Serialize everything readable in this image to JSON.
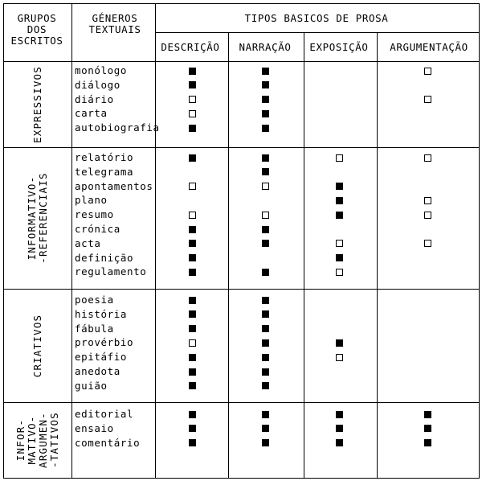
{
  "header": {
    "groups": "GRUPOS\nDOS\nESCRITOS",
    "genres": "GÉNEROS\nTEXTUAIS",
    "types_title": "TIPOS BASICOS DE PROSA",
    "columns": [
      "DESCRIÇÃO",
      "NARRAÇÃO",
      "EXPOSIÇÃO",
      "ARGUMENTAÇÃO"
    ]
  },
  "legend_marks": {
    "filled": "filled-square",
    "empty": "empty-square"
  },
  "groups": [
    {
      "name": "EXPRESSIVOS",
      "rows": [
        {
          "genre": "monólogo",
          "marks": [
            "f",
            "f",
            "",
            "e"
          ]
        },
        {
          "genre": "diálogo",
          "marks": [
            "f",
            "f",
            "",
            ""
          ]
        },
        {
          "genre": "diário",
          "marks": [
            "e",
            "f",
            "",
            "e"
          ]
        },
        {
          "genre": "carta",
          "marks": [
            "e",
            "f",
            "",
            ""
          ]
        },
        {
          "genre": "autobiografia",
          "marks": [
            "f",
            "f",
            "",
            ""
          ]
        }
      ]
    },
    {
      "name": "INFORMATIVO-\n-REFERENCIAIS",
      "rows": [
        {
          "genre": "relatório",
          "marks": [
            "f",
            "f",
            "e",
            "e"
          ]
        },
        {
          "genre": "telegrama",
          "marks": [
            "",
            "f",
            "",
            ""
          ]
        },
        {
          "genre": "apontamentos",
          "marks": [
            "e",
            "e",
            "f",
            ""
          ]
        },
        {
          "genre": "plano",
          "marks": [
            "",
            "",
            "f",
            "e"
          ]
        },
        {
          "genre": "resumo",
          "marks": [
            "e",
            "e",
            "f",
            "e"
          ]
        },
        {
          "genre": "crónica",
          "marks": [
            "f",
            "f",
            "",
            ""
          ]
        },
        {
          "genre": "acta",
          "marks": [
            "f",
            "f",
            "e",
            "e"
          ]
        },
        {
          "genre": "definição",
          "marks": [
            "f",
            "",
            "f",
            ""
          ]
        },
        {
          "genre": "regulamento",
          "marks": [
            "f",
            "f",
            "e",
            ""
          ]
        }
      ]
    },
    {
      "name": "CRIATIVOS",
      "rows": [
        {
          "genre": "poesia",
          "marks": [
            "f",
            "f",
            "",
            ""
          ]
        },
        {
          "genre": "história",
          "marks": [
            "f",
            "f",
            "",
            ""
          ]
        },
        {
          "genre": "fábula",
          "marks": [
            "f",
            "f",
            "",
            ""
          ]
        },
        {
          "genre": "provérbio",
          "marks": [
            "e",
            "f",
            "f",
            ""
          ]
        },
        {
          "genre": "epitáfio",
          "marks": [
            "f",
            "f",
            "e",
            ""
          ]
        },
        {
          "genre": "anedota",
          "marks": [
            "f",
            "f",
            "",
            ""
          ]
        },
        {
          "genre": "guião",
          "marks": [
            "f",
            "f",
            "",
            ""
          ]
        }
      ]
    },
    {
      "name": "INFOR-\nMATIVO-\nARGUMEN-\n-TATIVOS",
      "rows": [
        {
          "genre": "editorial",
          "marks": [
            "f",
            "f",
            "f",
            "f"
          ]
        },
        {
          "genre": "ensaio",
          "marks": [
            "f",
            "f",
            "f",
            "f"
          ]
        },
        {
          "genre": "comentário",
          "marks": [
            "f",
            "f",
            "f",
            "f"
          ]
        }
      ]
    }
  ]
}
